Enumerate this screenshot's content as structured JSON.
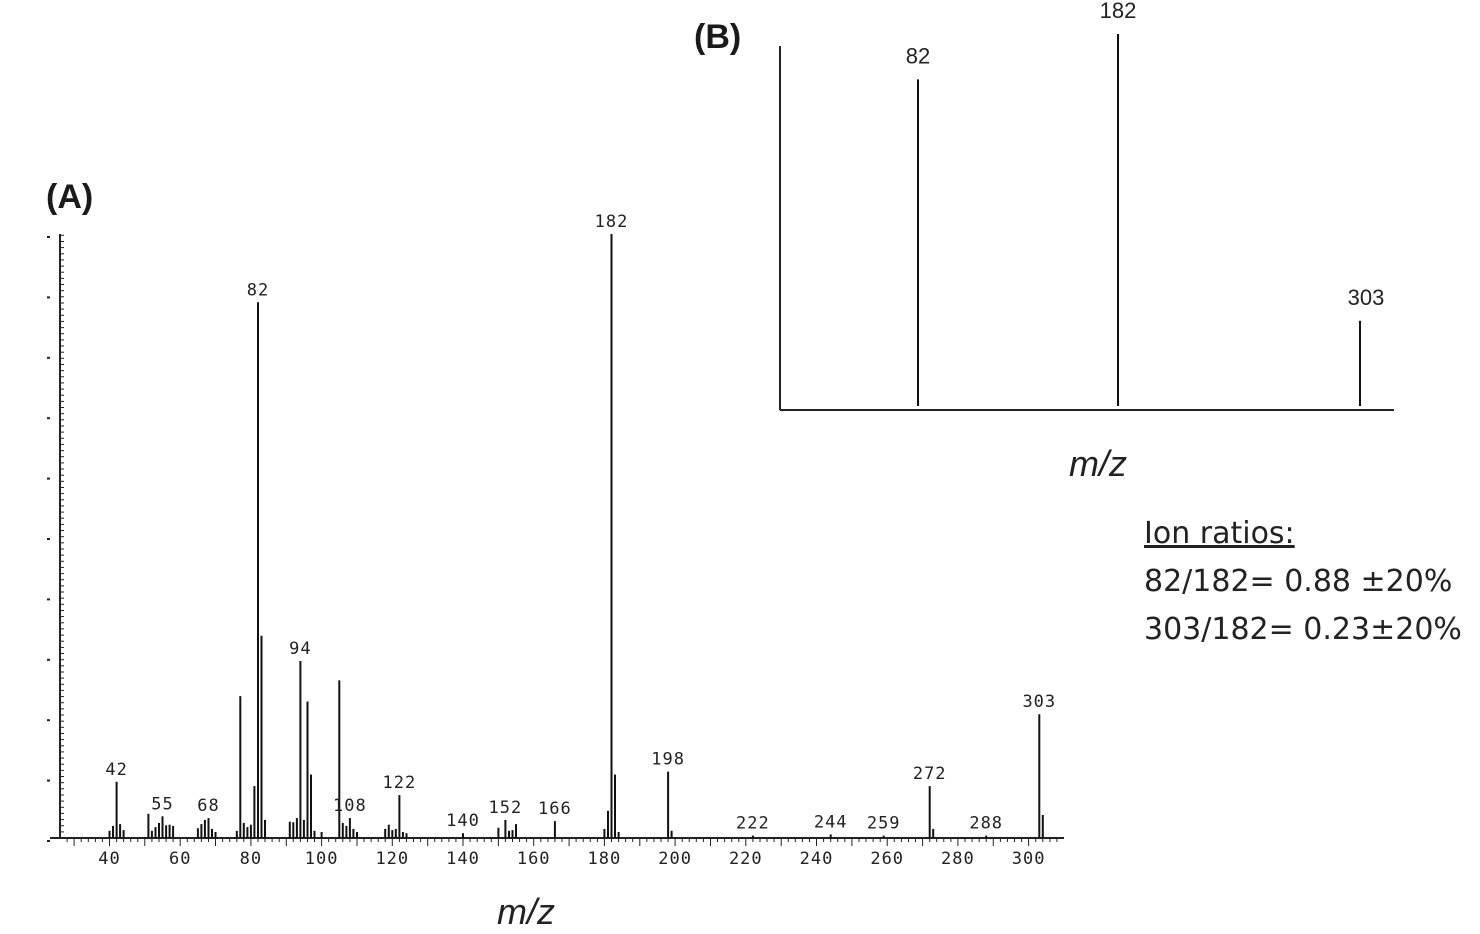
{
  "chart_data": [
    {
      "type": "bar",
      "panel_label": "(A)",
      "xlabel": "m/z",
      "ylabel": "",
      "xlim": [
        26,
        310
      ],
      "ylim": [
        0,
        100
      ],
      "x_ticks": [
        "40",
        "60",
        "80",
        "100",
        "120",
        "140",
        "160",
        "180",
        "200",
        "220",
        "240",
        "260",
        "280",
        "300"
      ],
      "peaks": [
        {
          "mz": 40,
          "intensity": 1.2
        },
        {
          "mz": 41,
          "intensity": 2.0
        },
        {
          "mz": 42,
          "intensity": 9.3,
          "label": "42"
        },
        {
          "mz": 43,
          "intensity": 2.3
        },
        {
          "mz": 44,
          "intensity": 1.3
        },
        {
          "mz": 51,
          "intensity": 4.0
        },
        {
          "mz": 52,
          "intensity": 1.2
        },
        {
          "mz": 53,
          "intensity": 1.8
        },
        {
          "mz": 54,
          "intensity": 2.5
        },
        {
          "mz": 55,
          "intensity": 3.6,
          "label": "55"
        },
        {
          "mz": 56,
          "intensity": 2.1
        },
        {
          "mz": 57,
          "intensity": 2.2
        },
        {
          "mz": 58,
          "intensity": 2.0
        },
        {
          "mz": 65,
          "intensity": 1.6
        },
        {
          "mz": 66,
          "intensity": 2.3
        },
        {
          "mz": 67,
          "intensity": 3.0
        },
        {
          "mz": 68,
          "intensity": 3.3,
          "label": "68"
        },
        {
          "mz": 69,
          "intensity": 1.5
        },
        {
          "mz": 70,
          "intensity": 1.0
        },
        {
          "mz": 76,
          "intensity": 1.2
        },
        {
          "mz": 77,
          "intensity": 23.5
        },
        {
          "mz": 78,
          "intensity": 2.5
        },
        {
          "mz": 79,
          "intensity": 1.8
        },
        {
          "mz": 80,
          "intensity": 2.2
        },
        {
          "mz": 81,
          "intensity": 8.6
        },
        {
          "mz": 82,
          "intensity": 88.7,
          "label": "82"
        },
        {
          "mz": 83,
          "intensity": 33.5
        },
        {
          "mz": 84,
          "intensity": 3.0
        },
        {
          "mz": 91,
          "intensity": 2.7
        },
        {
          "mz": 92,
          "intensity": 2.6
        },
        {
          "mz": 93,
          "intensity": 3.3
        },
        {
          "mz": 94,
          "intensity": 29.3,
          "label": "94"
        },
        {
          "mz": 95,
          "intensity": 3.0
        },
        {
          "mz": 96,
          "intensity": 22.6
        },
        {
          "mz": 97,
          "intensity": 10.5
        },
        {
          "mz": 98,
          "intensity": 1.2
        },
        {
          "mz": 100,
          "intensity": 1.0
        },
        {
          "mz": 105,
          "intensity": 26.1
        },
        {
          "mz": 106,
          "intensity": 2.5
        },
        {
          "mz": 107,
          "intensity": 2.0
        },
        {
          "mz": 108,
          "intensity": 3.3,
          "label": "108"
        },
        {
          "mz": 109,
          "intensity": 1.5
        },
        {
          "mz": 110,
          "intensity": 1.0
        },
        {
          "mz": 118,
          "intensity": 1.5
        },
        {
          "mz": 119,
          "intensity": 2.2
        },
        {
          "mz": 120,
          "intensity": 1.3
        },
        {
          "mz": 121,
          "intensity": 1.5
        },
        {
          "mz": 122,
          "intensity": 7.1,
          "label": "122"
        },
        {
          "mz": 123,
          "intensity": 1.0
        },
        {
          "mz": 124,
          "intensity": 0.8
        },
        {
          "mz": 140,
          "intensity": 0.8,
          "label": "140"
        },
        {
          "mz": 150,
          "intensity": 1.7
        },
        {
          "mz": 152,
          "intensity": 3.0,
          "label": "152"
        },
        {
          "mz": 153,
          "intensity": 1.2
        },
        {
          "mz": 154,
          "intensity": 1.3
        },
        {
          "mz": 155,
          "intensity": 2.3
        },
        {
          "mz": 166,
          "intensity": 2.8,
          "label": "166"
        },
        {
          "mz": 180,
          "intensity": 1.5
        },
        {
          "mz": 181,
          "intensity": 4.5
        },
        {
          "mz": 182,
          "intensity": 100.0,
          "label": "182"
        },
        {
          "mz": 183,
          "intensity": 10.5
        },
        {
          "mz": 184,
          "intensity": 1.0
        },
        {
          "mz": 198,
          "intensity": 11.0,
          "label": "198"
        },
        {
          "mz": 199,
          "intensity": 1.2
        },
        {
          "mz": 222,
          "intensity": 0.4,
          "label": "222"
        },
        {
          "mz": 244,
          "intensity": 0.6,
          "label": "244"
        },
        {
          "mz": 259,
          "intensity": 0.4,
          "label": "259"
        },
        {
          "mz": 272,
          "intensity": 8.6,
          "label": "272"
        },
        {
          "mz": 273,
          "intensity": 1.5
        },
        {
          "mz": 288,
          "intensity": 0.4,
          "label": "288"
        },
        {
          "mz": 303,
          "intensity": 20.5,
          "label": "303"
        },
        {
          "mz": 304,
          "intensity": 3.8
        }
      ]
    },
    {
      "type": "bar",
      "panel_label": "(B)",
      "xlabel": "m/z",
      "ylabel": "",
      "ylim": [
        0,
        100
      ],
      "peaks": [
        {
          "mz": 82,
          "intensity": 87.8,
          "label": "82"
        },
        {
          "mz": 182,
          "intensity": 100.0,
          "label": "182"
        },
        {
          "mz": 303,
          "intensity": 22.9,
          "label": "303"
        }
      ]
    }
  ],
  "ion_ratios": {
    "heading": "Ion ratios:",
    "line1": "82/182= 0.88 ±20%",
    "line2": "303/182= 0.23±20%"
  }
}
